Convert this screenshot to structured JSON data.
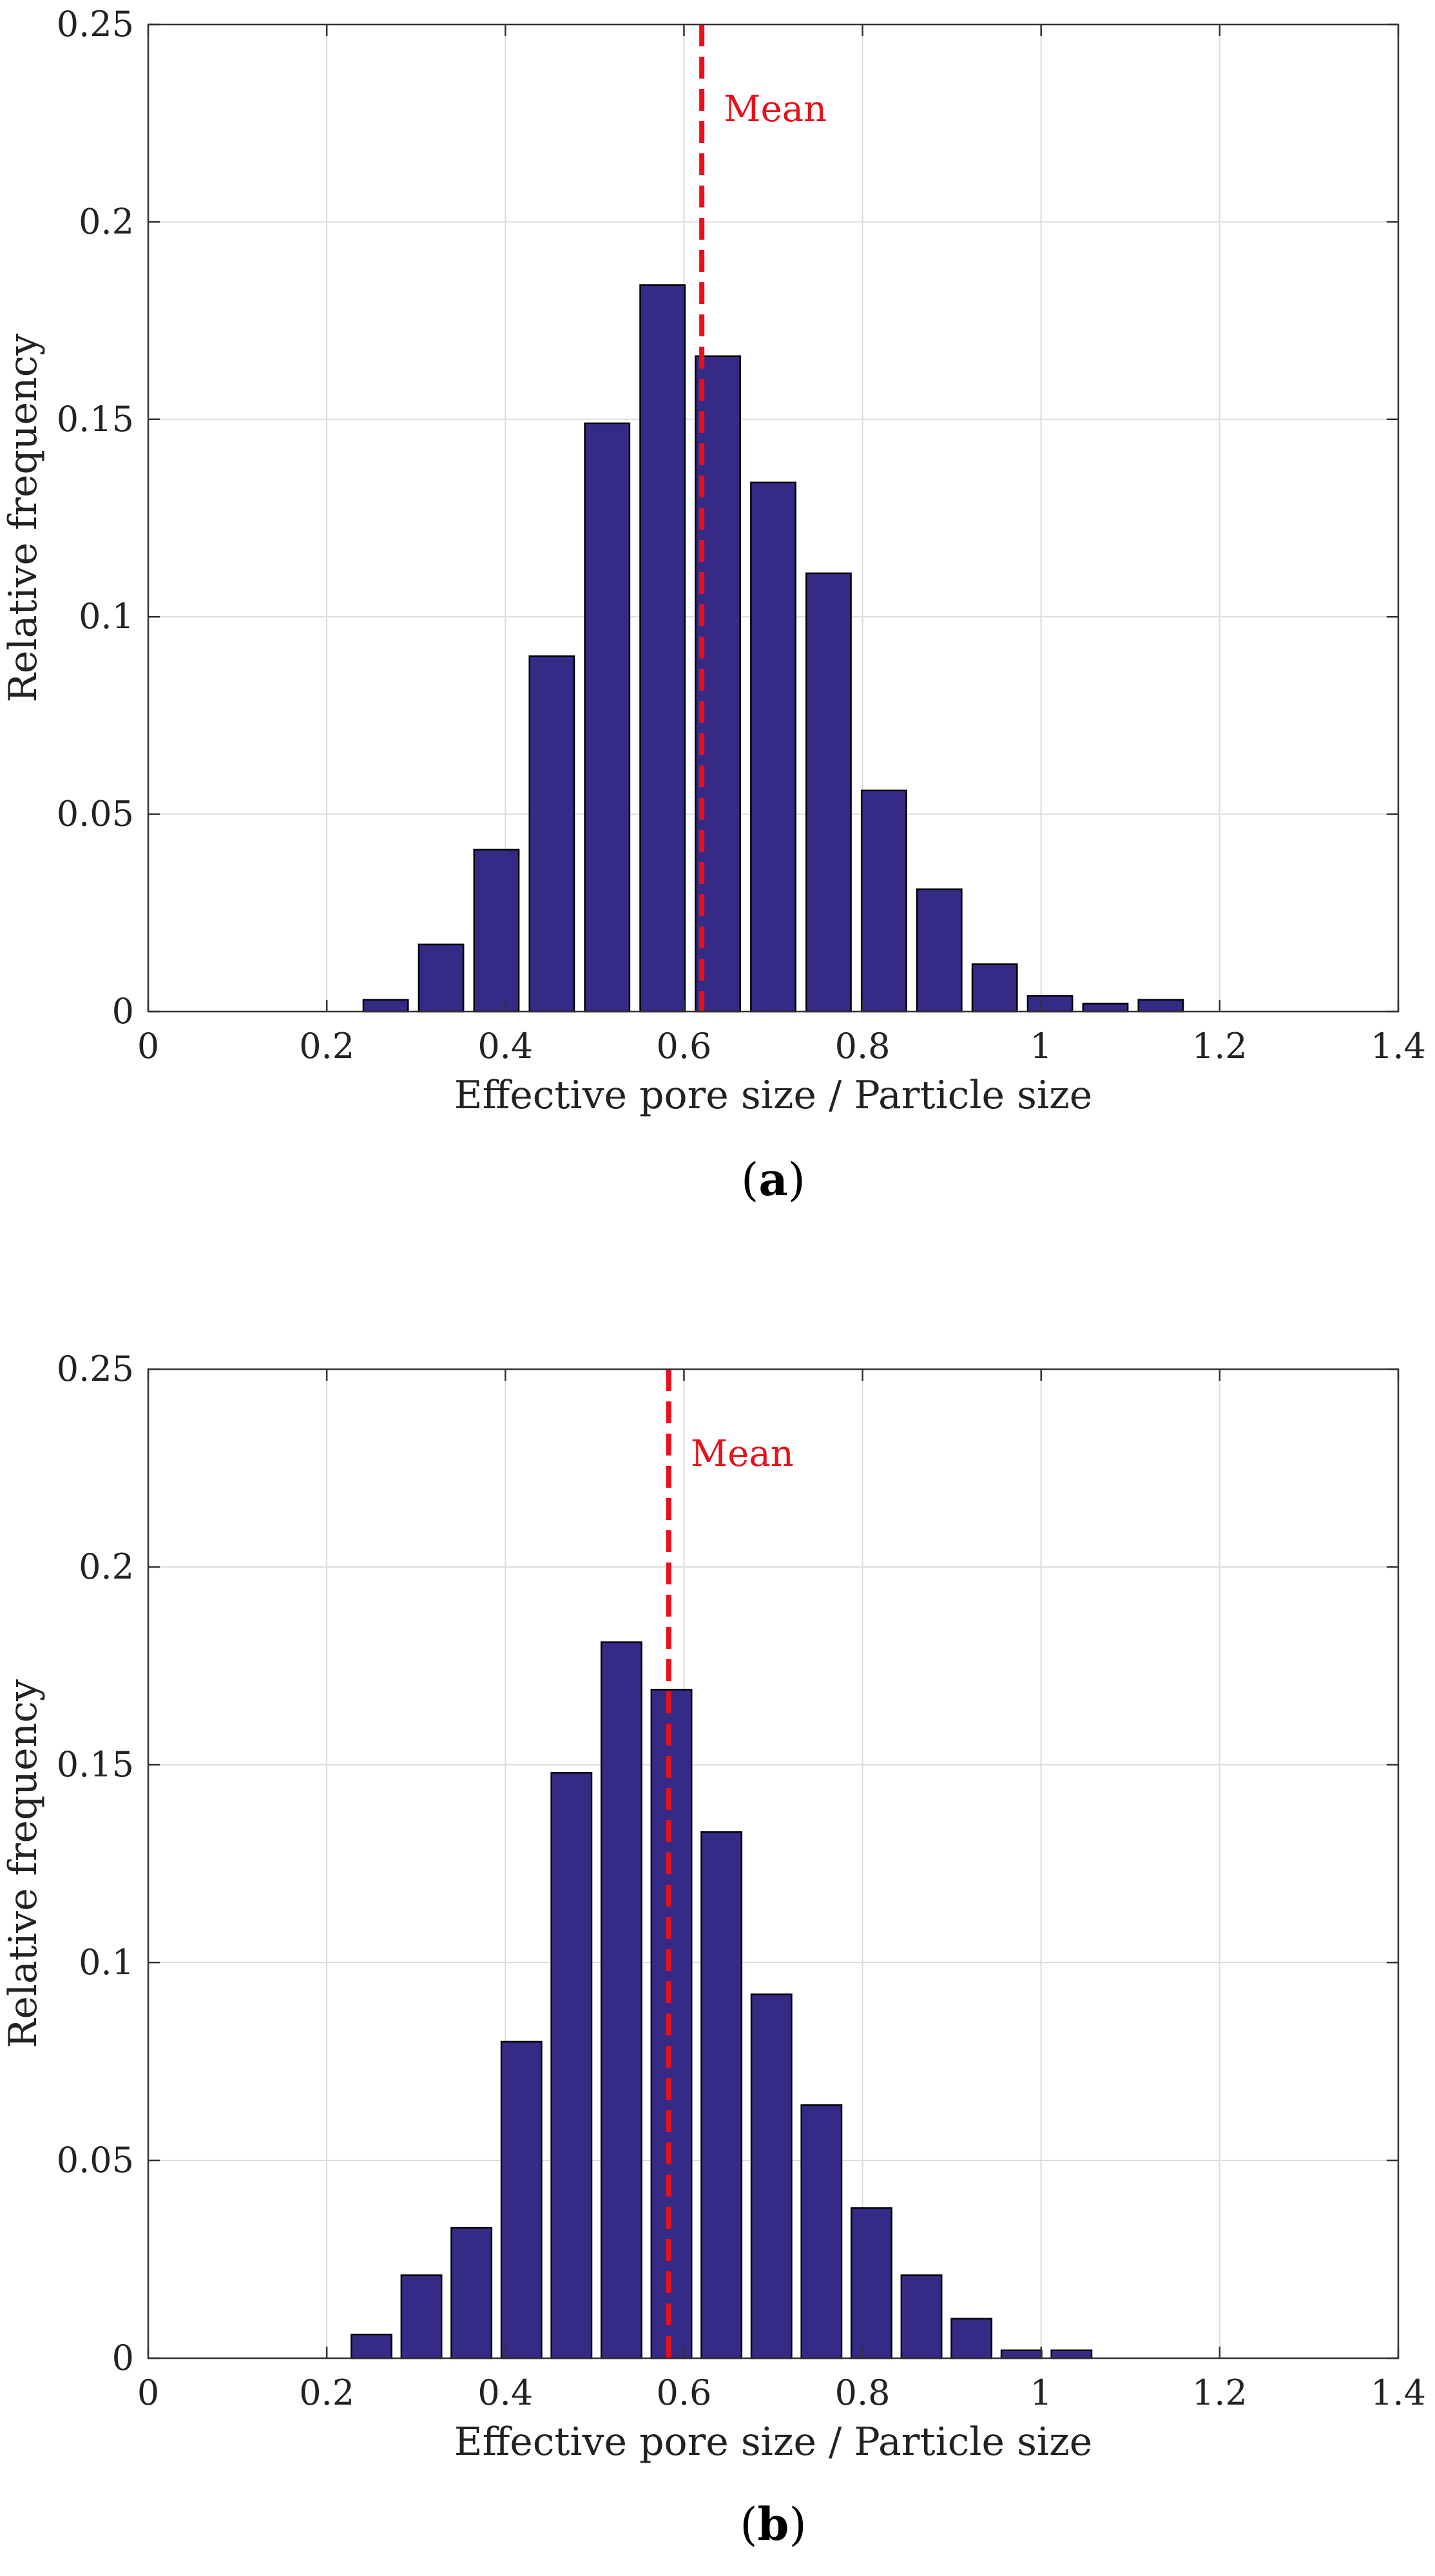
{
  "chart_data": [
    {
      "type": "bar",
      "panel": "a",
      "caption_open": "(",
      "caption_letter": "a",
      "caption_close": ")",
      "xlabel": "Effective pore size / Particle size",
      "ylabel": "Relative frequency",
      "xlim": [
        0,
        1.4
      ],
      "ylim": [
        0,
        0.25
      ],
      "xticks": [
        "0",
        "0.2",
        "0.4",
        "0.6",
        "0.8",
        "1",
        "1.2",
        "1.4"
      ],
      "yticks": [
        "0",
        "0.05",
        "0.1",
        "0.15",
        "0.2",
        "0.25"
      ],
      "grid": true,
      "bar_width": 0.05,
      "bar_color": "#352a85",
      "x": [
        0.266,
        0.328,
        0.39,
        0.452,
        0.514,
        0.576,
        0.638,
        0.7,
        0.762,
        0.824,
        0.886,
        0.948,
        1.01,
        1.072,
        1.134
      ],
      "values": [
        0.003,
        0.017,
        0.041,
        0.09,
        0.149,
        0.184,
        0.166,
        0.134,
        0.111,
        0.056,
        0.031,
        0.012,
        0.004,
        0.002,
        0.003
      ],
      "mean": 0.62,
      "mean_label": "Mean",
      "mean_color": "#e8101a"
    },
    {
      "type": "bar",
      "panel": "b",
      "caption_open": "(",
      "caption_letter": "b",
      "caption_close": ")",
      "xlabel": "Effective pore size / Particle size",
      "ylabel": "Relative frequency",
      "xlim": [
        0,
        1.4
      ],
      "ylim": [
        0,
        0.25
      ],
      "xticks": [
        "0",
        "0.2",
        "0.4",
        "0.6",
        "0.8",
        "1",
        "1.2",
        "1.4"
      ],
      "yticks": [
        "0",
        "0.05",
        "0.1",
        "0.15",
        "0.2",
        "0.25"
      ],
      "grid": true,
      "bar_width": 0.045,
      "bar_color": "#352a85",
      "x": [
        0.25,
        0.306,
        0.362,
        0.418,
        0.474,
        0.53,
        0.586,
        0.642,
        0.698,
        0.754,
        0.81,
        0.866,
        0.922,
        0.978,
        1.034
      ],
      "values": [
        0.006,
        0.021,
        0.033,
        0.08,
        0.148,
        0.181,
        0.169,
        0.133,
        0.092,
        0.064,
        0.038,
        0.021,
        0.01,
        0.002,
        0.002
      ],
      "mean": 0.583,
      "mean_label": "Mean",
      "mean_color": "#e8101a"
    }
  ]
}
